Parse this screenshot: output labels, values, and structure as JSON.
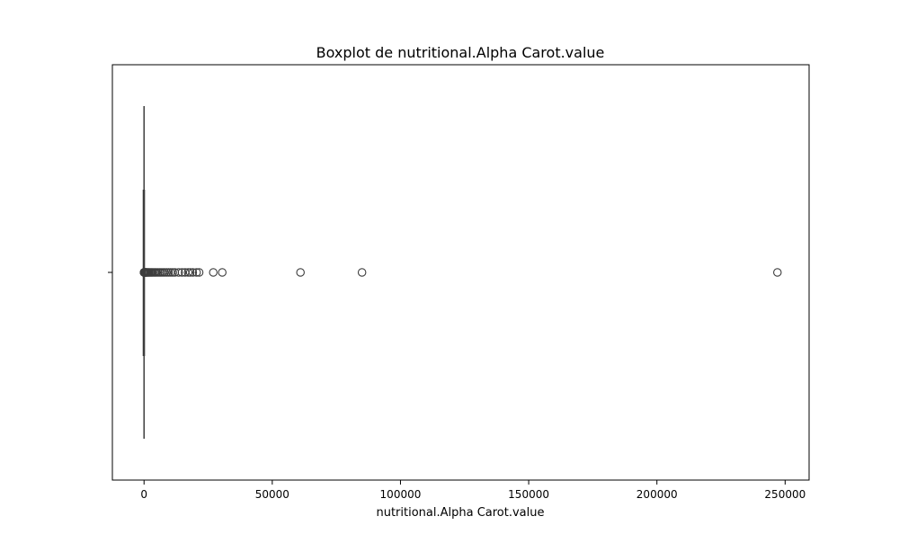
{
  "chart_data": {
    "type": "boxplot",
    "orientation": "horizontal",
    "title": "Boxplot de nutritional.Alpha Carot.value",
    "xlabel": "nutritional.Alpha Carot.value",
    "ylabel": "",
    "xlim": [
      -12350,
      259350
    ],
    "xticks": [
      0,
      50000,
      100000,
      150000,
      200000,
      250000
    ],
    "xtick_labels": [
      "0",
      "50000",
      "100000",
      "150000",
      "200000",
      "250000"
    ],
    "ytick_labels": [
      ""
    ],
    "grid": false,
    "box": {
      "whisker_low": 0,
      "q1": 0,
      "median": 0,
      "q3": 0,
      "whisker_high": 0
    },
    "outliers": [
      5,
      10,
      20,
      40,
      70,
      100,
      150,
      200,
      300,
      400,
      500,
      650,
      800,
      1000,
      1200,
      1500,
      1800,
      2100,
      2500,
      2900,
      3300,
      3800,
      4300,
      4800,
      5400,
      6000,
      6600,
      7300,
      8000,
      8800,
      9600,
      10400,
      11200,
      12000,
      13500,
      14800,
      16000,
      17200,
      18000,
      19000,
      20500,
      21500,
      27000,
      30500,
      61000,
      85000,
      247000
    ],
    "style": {
      "line_color": "#3d3d3d",
      "box_fill": "#1f77b4",
      "marker_fill": "none"
    }
  }
}
